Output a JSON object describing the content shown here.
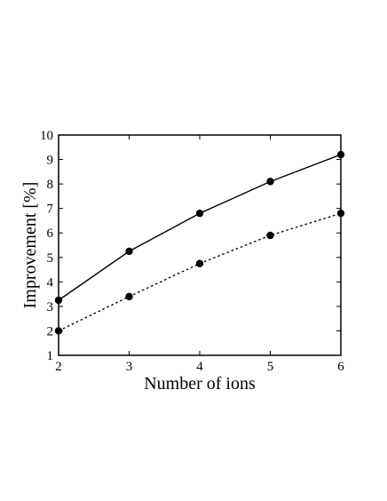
{
  "chart_data": {
    "type": "line",
    "title": "",
    "xlabel": "Number of ions",
    "ylabel": "Improvement [%]",
    "xlim": [
      2,
      6
    ],
    "ylim": [
      1,
      10
    ],
    "xticks": [
      2,
      3,
      4,
      5,
      6
    ],
    "yticks": [
      1,
      2,
      3,
      4,
      5,
      6,
      7,
      8,
      9,
      10
    ],
    "grid": false,
    "legend": "none",
    "x": [
      2,
      3,
      4,
      5,
      6
    ],
    "series": [
      {
        "values": [
          3.25,
          5.25,
          6.8,
          8.1,
          9.2
        ],
        "style": "solid",
        "color": "#000000",
        "marker": "filled-circle"
      },
      {
        "values": [
          2.0,
          3.4,
          4.75,
          5.9,
          6.8
        ],
        "style": "dotted",
        "color": "#000000",
        "marker": "filled-circle"
      }
    ]
  }
}
